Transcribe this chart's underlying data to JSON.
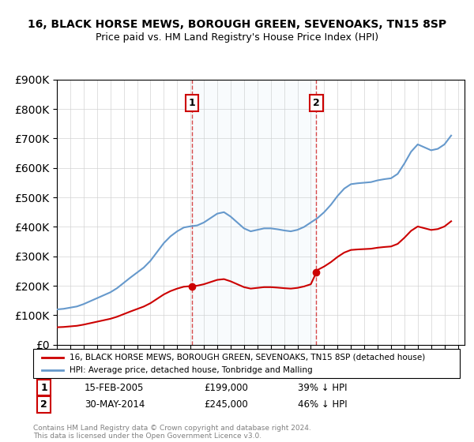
{
  "title": "16, BLACK HORSE MEWS, BOROUGH GREEN, SEVENOAKS, TN15 8SP",
  "subtitle": "Price paid vs. HM Land Registry's House Price Index (HPI)",
  "legend_line1": "16, BLACK HORSE MEWS, BOROUGH GREEN, SEVENOAKS, TN15 8SP (detached house)",
  "legend_line2": "HPI: Average price, detached house, Tonbridge and Malling",
  "footnote": "Contains HM Land Registry data © Crown copyright and database right 2024.\nThis data is licensed under the Open Government Licence v3.0.",
  "transaction1_label": "1",
  "transaction1_date": "15-FEB-2005",
  "transaction1_price": "£199,000",
  "transaction1_hpi": "39% ↓ HPI",
  "transaction2_label": "2",
  "transaction2_date": "30-MAY-2014",
  "transaction2_price": "£245,000",
  "transaction2_hpi": "46% ↓ HPI",
  "hpi_color": "#6699cc",
  "price_color": "#cc0000",
  "marker1_x": 2005.12,
  "marker1_y": 199000,
  "marker2_x": 2014.41,
  "marker2_y": 245000,
  "vline1_x": 2005.12,
  "vline2_x": 2014.41,
  "ylim": [
    0,
    900000
  ],
  "xlim_start": 1995,
  "xlim_end": 2025.5
}
